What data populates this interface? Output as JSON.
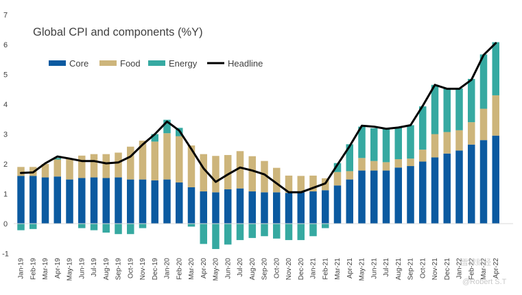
{
  "chart_data": {
    "type": "bar",
    "stacked": true,
    "title": "Global CPI and components (%Y)",
    "xlabel": "",
    "ylabel": "",
    "ylim": [
      -1,
      7
    ],
    "yticks": [
      "-1",
      "0",
      "1",
      "2",
      "3",
      "4",
      "5",
      "6",
      "7"
    ],
    "grid": false,
    "legend_position": "top-left",
    "categories": [
      "Jan-19",
      "Feb-19",
      "Mar-19",
      "Apr-19",
      "May-19",
      "Jun-19",
      "Jul-19",
      "Aug-19",
      "Sep-19",
      "Oct-19",
      "Nov-19",
      "Dec-19",
      "Jan-20",
      "Feb-20",
      "Mar-20",
      "Apr-20",
      "May-20",
      "Jun-20",
      "Jul-20",
      "Aug-20",
      "Sep-20",
      "Oct-20",
      "Nov-20",
      "Dec-20",
      "Jan-21",
      "Feb-21",
      "Mar-21",
      "Apr-21",
      "May-21",
      "Jun-21",
      "Jul-21",
      "Aug-21",
      "Sep-21",
      "Oct-21",
      "Nov-21",
      "Dec-21",
      "Jan-22",
      "Feb-22",
      "Mar-22",
      "Apr-22"
    ],
    "xtick_labels": [
      "Jan-19",
      "Feb-19",
      "Mar-19",
      "Apr-19",
      "May-19",
      "Jun-19",
      "Jul-19",
      "Aug-19",
      "Sep-19",
      "Oct-19",
      "Nov-19",
      "Dec-19",
      "Jan-20",
      "Feb-20",
      "Mar-20",
      "Apr-20",
      "May-20",
      "Jun-20",
      "Jul-20",
      "Aug-20",
      "Sep-20",
      "Oct-20",
      "Nov-20",
      "Dec-20",
      "Jan-21",
      "Feb-21",
      "Mar-21",
      "Apr-21",
      "May-21",
      "Jun-21",
      "Jul-21",
      "Aug-21",
      "Sep-21",
      "Oct-21",
      "Nov-21",
      "Dec-21",
      "Jan-22",
      "Feb-22",
      "Mar-22",
      "Apr-22"
    ],
    "series": [
      {
        "name": "Core",
        "kind": "bar",
        "color": "#0b5aa0",
        "values": [
          1.6,
          1.6,
          1.55,
          1.58,
          1.48,
          1.53,
          1.55,
          1.53,
          1.55,
          1.48,
          1.48,
          1.45,
          1.48,
          1.38,
          1.22,
          1.08,
          1.05,
          1.15,
          1.18,
          1.08,
          1.05,
          1.05,
          1.03,
          1.05,
          1.08,
          1.12,
          1.28,
          1.48,
          1.78,
          1.78,
          1.78,
          1.88,
          1.93,
          2.08,
          2.22,
          2.35,
          2.45,
          2.65,
          2.8,
          2.95
        ]
      },
      {
        "name": "Food",
        "kind": "bar",
        "color": "#cdb57b",
        "values": [
          0.3,
          0.3,
          0.45,
          0.57,
          0.7,
          0.75,
          0.78,
          0.8,
          0.83,
          1.1,
          1.3,
          1.3,
          1.55,
          1.55,
          1.4,
          1.25,
          1.22,
          1.15,
          1.25,
          1.18,
          1.05,
          0.82,
          0.58,
          0.55,
          0.53,
          0.4,
          0.45,
          0.28,
          0.42,
          0.32,
          0.28,
          0.28,
          0.25,
          0.4,
          0.78,
          0.72,
          0.68,
          0.75,
          1.05,
          1.35
        ]
      },
      {
        "name": "Energy",
        "kind": "bar",
        "color": "#36a9a1",
        "values": [
          -0.22,
          -0.18,
          0.0,
          0.05,
          0.0,
          -0.15,
          -0.22,
          -0.3,
          -0.35,
          -0.35,
          -0.15,
          0.25,
          0.45,
          0.28,
          -0.1,
          -0.68,
          -0.85,
          -0.7,
          -0.55,
          -0.48,
          -0.42,
          -0.5,
          -0.55,
          -0.55,
          -0.42,
          -0.15,
          0.3,
          0.9,
          1.05,
          1.1,
          1.15,
          1.08,
          1.12,
          1.45,
          1.65,
          1.47,
          1.4,
          1.45,
          1.82,
          1.78
        ]
      },
      {
        "name": "Headline",
        "kind": "line",
        "color": "#000000",
        "values": [
          1.7,
          1.72,
          2.02,
          2.25,
          2.18,
          2.1,
          2.1,
          2.02,
          2.05,
          2.25,
          2.65,
          3.0,
          3.42,
          3.12,
          2.5,
          1.85,
          1.4,
          1.65,
          1.88,
          1.78,
          1.65,
          1.35,
          1.05,
          1.05,
          1.2,
          1.35,
          1.98,
          2.6,
          3.28,
          3.25,
          3.18,
          3.22,
          3.3,
          3.95,
          4.65,
          4.52,
          4.52,
          4.82,
          5.65,
          6.05
        ]
      }
    ]
  },
  "watermark": {
    "brand": "雪球财经",
    "author": "@Robert S.T"
  }
}
